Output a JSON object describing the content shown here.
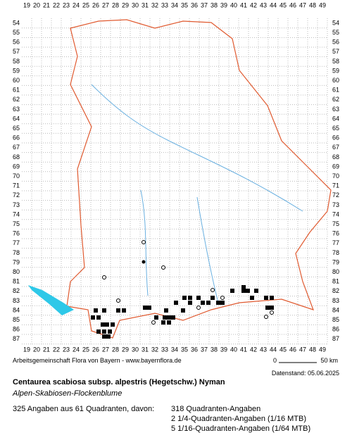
{
  "map": {
    "columns": [
      19,
      20,
      21,
      22,
      23,
      24,
      25,
      26,
      27,
      28,
      29,
      30,
      31,
      32,
      33,
      34,
      35,
      36,
      37,
      38,
      39,
      40,
      41,
      42,
      43,
      44,
      45,
      46,
      47,
      48,
      49
    ],
    "rows": [
      54,
      55,
      56,
      57,
      58,
      59,
      60,
      61,
      62,
      63,
      64,
      65,
      66,
      67,
      68,
      69,
      70,
      71,
      72,
      73,
      74,
      75,
      76,
      77,
      78,
      79,
      80,
      81,
      82,
      83,
      84,
      85,
      86,
      87
    ]
  },
  "footer": {
    "credit": "Arbeitsgemeinschaft Flora von Bayern - www.bayernflora.de",
    "scale_start": "0",
    "scale_end": "50 km",
    "date": "Datenstand: 05.06.2025"
  },
  "species": {
    "name": "Centaurea scabiosa subsp. alpestris (Hegetschw.) Nyman",
    "common_name": "Alpen-Skabiosen-Flockenblume"
  },
  "summary": {
    "total": "325 Angaben aus 61 Quadranten, davon:",
    "details": [
      "318 Quadranten-Angaben",
      "2 1/4-Quadranten-Angaben (1/16 MTB)",
      "5 1/16-Quadranten-Angaben (1/64 MTB)"
    ]
  }
}
